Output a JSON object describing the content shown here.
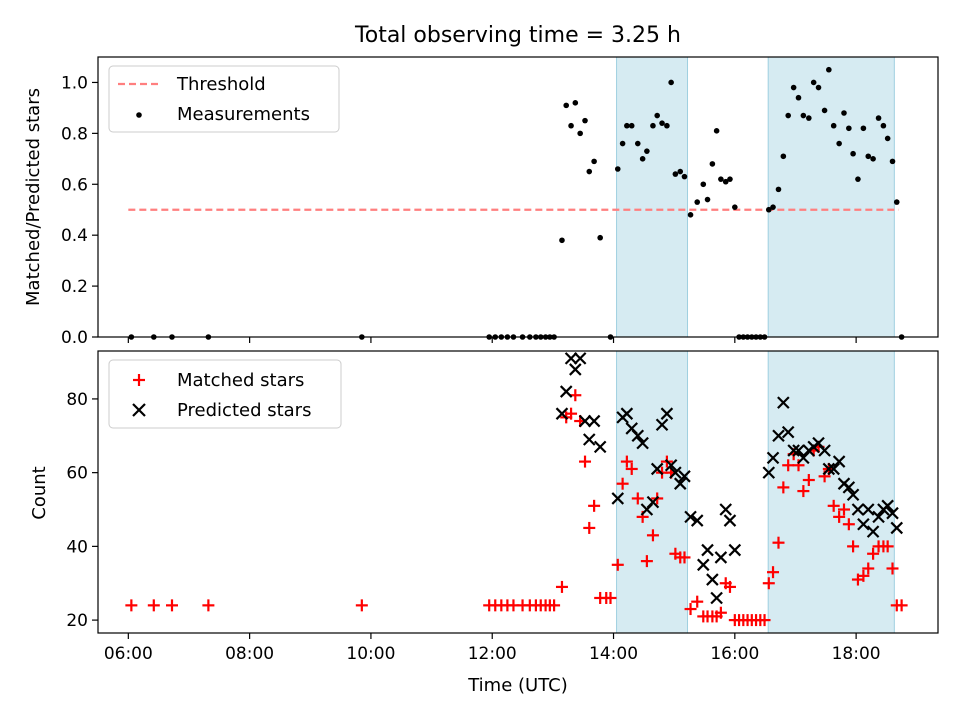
{
  "chart_data": {
    "type": "scatter",
    "title": "Total observing time = 3.25 h",
    "x_axis": {
      "label": "Time (UTC)",
      "unit": "hours UTC",
      "range": [
        5.5,
        19.35
      ],
      "ticks": [
        6,
        8,
        10,
        12,
        14,
        16,
        18
      ],
      "tick_labels": [
        "06:00",
        "08:00",
        "10:00",
        "12:00",
        "14:00",
        "16:00",
        "18:00"
      ]
    },
    "observing_windows": [
      {
        "start": 14.05,
        "end": 15.22
      },
      {
        "start": 16.55,
        "end": 18.63
      }
    ],
    "panels": [
      {
        "id": "ratio",
        "ylabel": "Matched/Predicted stars",
        "ylim": [
          0,
          1.1
        ],
        "yticks": [
          0.0,
          0.2,
          0.4,
          0.6,
          0.8,
          1.0
        ],
        "ytick_labels": [
          "0.0",
          "0.2",
          "0.4",
          "0.6",
          "0.8",
          "1.0"
        ],
        "legend_position": "upper-left",
        "threshold": {
          "name": "Threshold",
          "value": 0.5,
          "x_range": [
            6.0,
            18.7
          ],
          "color": "#ff7f7f"
        },
        "series": [
          {
            "name": "Measurements",
            "color": "#000000",
            "marker": "dot",
            "points": [
              [
                6.05,
                0
              ],
              [
                6.42,
                0
              ],
              [
                6.72,
                0
              ],
              [
                7.32,
                0
              ],
              [
                9.85,
                0
              ],
              [
                11.95,
                0
              ],
              [
                12.05,
                0
              ],
              [
                12.15,
                0
              ],
              [
                12.25,
                0
              ],
              [
                12.35,
                0
              ],
              [
                12.5,
                0
              ],
              [
                12.62,
                0
              ],
              [
                12.72,
                0
              ],
              [
                12.8,
                0
              ],
              [
                12.88,
                0
              ],
              [
                12.95,
                0
              ],
              [
                13.02,
                0
              ],
              [
                13.15,
                0.38
              ],
              [
                13.22,
                0.91
              ],
              [
                13.3,
                0.83
              ],
              [
                13.37,
                0.92
              ],
              [
                13.45,
                0.8
              ],
              [
                13.53,
                0.85
              ],
              [
                13.6,
                0.65
              ],
              [
                13.68,
                0.69
              ],
              [
                13.78,
                0.39
              ],
              [
                13.95,
                0.0
              ],
              [
                14.07,
                0.66
              ],
              [
                14.15,
                0.76
              ],
              [
                14.22,
                0.83
              ],
              [
                14.3,
                0.83
              ],
              [
                14.4,
                0.76
              ],
              [
                14.48,
                0.7
              ],
              [
                14.55,
                0.73
              ],
              [
                14.65,
                0.83
              ],
              [
                14.72,
                0.87
              ],
              [
                14.8,
                0.84
              ],
              [
                14.88,
                0.83
              ],
              [
                14.95,
                1.0
              ],
              [
                15.02,
                0.64
              ],
              [
                15.1,
                0.65
              ],
              [
                15.17,
                0.63
              ],
              [
                15.27,
                0.48
              ],
              [
                15.38,
                0.53
              ],
              [
                15.48,
                0.6
              ],
              [
                15.55,
                0.54
              ],
              [
                15.63,
                0.68
              ],
              [
                15.7,
                0.81
              ],
              [
                15.77,
                0.62
              ],
              [
                15.85,
                0.61
              ],
              [
                15.92,
                0.62
              ],
              [
                16.0,
                0.51
              ],
              [
                16.07,
                0
              ],
              [
                16.14,
                0
              ],
              [
                16.21,
                0
              ],
              [
                16.28,
                0
              ],
              [
                16.35,
                0
              ],
              [
                16.42,
                0
              ],
              [
                16.49,
                0
              ],
              [
                16.56,
                0.5
              ],
              [
                16.63,
                0.51
              ],
              [
                16.72,
                0.58
              ],
              [
                16.8,
                0.71
              ],
              [
                16.88,
                0.87
              ],
              [
                16.97,
                0.98
              ],
              [
                17.05,
                0.94
              ],
              [
                17.13,
                0.87
              ],
              [
                17.22,
                0.86
              ],
              [
                17.3,
                1.0
              ],
              [
                17.38,
                0.98
              ],
              [
                17.48,
                0.89
              ],
              [
                17.55,
                1.05
              ],
              [
                17.63,
                0.83
              ],
              [
                17.72,
                0.76
              ],
              [
                17.8,
                0.88
              ],
              [
                17.88,
                0.82
              ],
              [
                17.95,
                0.72
              ],
              [
                18.03,
                0.62
              ],
              [
                18.12,
                0.82
              ],
              [
                18.2,
                0.71
              ],
              [
                18.28,
                0.7
              ],
              [
                18.37,
                0.86
              ],
              [
                18.45,
                0.83
              ],
              [
                18.52,
                0.78
              ],
              [
                18.6,
                0.69
              ],
              [
                18.67,
                0.53
              ],
              [
                18.75,
                0.0
              ]
            ]
          }
        ]
      },
      {
        "id": "counts",
        "ylabel": "Count",
        "ylim": [
          16.5,
          93
        ],
        "yticks": [
          20,
          40,
          60,
          80
        ],
        "ytick_labels": [
          "20",
          "40",
          "60",
          "80"
        ],
        "legend_position": "upper-left",
        "series": [
          {
            "name": "Matched stars",
            "color": "#ff0000",
            "marker": "plus",
            "points": [
              [
                6.05,
                24
              ],
              [
                6.42,
                24
              ],
              [
                6.72,
                24
              ],
              [
                7.32,
                24
              ],
              [
                9.85,
                24
              ],
              [
                11.95,
                24
              ],
              [
                12.05,
                24
              ],
              [
                12.15,
                24
              ],
              [
                12.25,
                24
              ],
              [
                12.35,
                24
              ],
              [
                12.5,
                24
              ],
              [
                12.62,
                24
              ],
              [
                12.72,
                24
              ],
              [
                12.8,
                24
              ],
              [
                12.88,
                24
              ],
              [
                12.95,
                24
              ],
              [
                13.02,
                24
              ],
              [
                13.15,
                29
              ],
              [
                13.22,
                75
              ],
              [
                13.3,
                76
              ],
              [
                13.37,
                81
              ],
              [
                13.45,
                74
              ],
              [
                13.53,
                63
              ],
              [
                13.6,
                45
              ],
              [
                13.68,
                51
              ],
              [
                13.78,
                26
              ],
              [
                13.88,
                26
              ],
              [
                13.95,
                26
              ],
              [
                14.07,
                35
              ],
              [
                14.15,
                57
              ],
              [
                14.22,
                63
              ],
              [
                14.3,
                61
              ],
              [
                14.4,
                53
              ],
              [
                14.48,
                48
              ],
              [
                14.55,
                36
              ],
              [
                14.65,
                43
              ],
              [
                14.72,
                53
              ],
              [
                14.8,
                60
              ],
              [
                14.88,
                63
              ],
              [
                14.95,
                60
              ],
              [
                15.02,
                38
              ],
              [
                15.1,
                37
              ],
              [
                15.17,
                37
              ],
              [
                15.27,
                23
              ],
              [
                15.38,
                25
              ],
              [
                15.48,
                21
              ],
              [
                15.55,
                21
              ],
              [
                15.63,
                21
              ],
              [
                15.7,
                21
              ],
              [
                15.77,
                22
              ],
              [
                15.85,
                30
              ],
              [
                15.92,
                29
              ],
              [
                16.0,
                20
              ],
              [
                16.07,
                20
              ],
              [
                16.14,
                20
              ],
              [
                16.21,
                20
              ],
              [
                16.28,
                20
              ],
              [
                16.35,
                20
              ],
              [
                16.42,
                20
              ],
              [
                16.49,
                20
              ],
              [
                16.56,
                30
              ],
              [
                16.63,
                33
              ],
              [
                16.72,
                41
              ],
              [
                16.8,
                56
              ],
              [
                16.88,
                62
              ],
              [
                16.97,
                65
              ],
              [
                17.05,
                62
              ],
              [
                17.13,
                55
              ],
              [
                17.22,
                58
              ],
              [
                17.3,
                66
              ],
              [
                17.38,
                67
              ],
              [
                17.48,
                59
              ],
              [
                17.55,
                61
              ],
              [
                17.63,
                51
              ],
              [
                17.72,
                48
              ],
              [
                17.8,
                50
              ],
              [
                17.88,
                46
              ],
              [
                17.95,
                40
              ],
              [
                18.03,
                31
              ],
              [
                18.12,
                32
              ],
              [
                18.2,
                34
              ],
              [
                18.28,
                38
              ],
              [
                18.37,
                40
              ],
              [
                18.45,
                40
              ],
              [
                18.52,
                40
              ],
              [
                18.6,
                34
              ],
              [
                18.67,
                24
              ],
              [
                18.75,
                24
              ]
            ]
          },
          {
            "name": "Predicted stars",
            "color": "#000000",
            "marker": "x",
            "points": [
              [
                13.15,
                76
              ],
              [
                13.22,
                82
              ],
              [
                13.3,
                91
              ],
              [
                13.37,
                88
              ],
              [
                13.45,
                91
              ],
              [
                13.53,
                74
              ],
              [
                13.6,
                69
              ],
              [
                13.68,
                74
              ],
              [
                13.78,
                67
              ],
              [
                14.07,
                53
              ],
              [
                14.15,
                75
              ],
              [
                14.22,
                76
              ],
              [
                14.3,
                72
              ],
              [
                14.4,
                70
              ],
              [
                14.48,
                68
              ],
              [
                14.55,
                50
              ],
              [
                14.65,
                52
              ],
              [
                14.72,
                61
              ],
              [
                14.8,
                73
              ],
              [
                14.88,
                76
              ],
              [
                14.95,
                62
              ],
              [
                15.02,
                60
              ],
              [
                15.1,
                57
              ],
              [
                15.17,
                59
              ],
              [
                15.27,
                48
              ],
              [
                15.38,
                47
              ],
              [
                15.48,
                35
              ],
              [
                15.55,
                39
              ],
              [
                15.63,
                31
              ],
              [
                15.7,
                26
              ],
              [
                15.77,
                37
              ],
              [
                15.85,
                50
              ],
              [
                15.92,
                47
              ],
              [
                16.0,
                39
              ],
              [
                16.56,
                60
              ],
              [
                16.63,
                64
              ],
              [
                16.72,
                70
              ],
              [
                16.8,
                79
              ],
              [
                16.88,
                71
              ],
              [
                16.97,
                66
              ],
              [
                17.05,
                66
              ],
              [
                17.13,
                64
              ],
              [
                17.22,
                66
              ],
              [
                17.3,
                67
              ],
              [
                17.38,
                68
              ],
              [
                17.48,
                66
              ],
              [
                17.55,
                61
              ],
              [
                17.63,
                61
              ],
              [
                17.72,
                63
              ],
              [
                17.8,
                57
              ],
              [
                17.88,
                56
              ],
              [
                17.95,
                54
              ],
              [
                18.03,
                50
              ],
              [
                18.12,
                46
              ],
              [
                18.2,
                50
              ],
              [
                18.28,
                44
              ],
              [
                18.37,
                48
              ],
              [
                18.45,
                50
              ],
              [
                18.52,
                51
              ],
              [
                18.6,
                49
              ],
              [
                18.67,
                45
              ]
            ]
          }
        ]
      }
    ]
  }
}
